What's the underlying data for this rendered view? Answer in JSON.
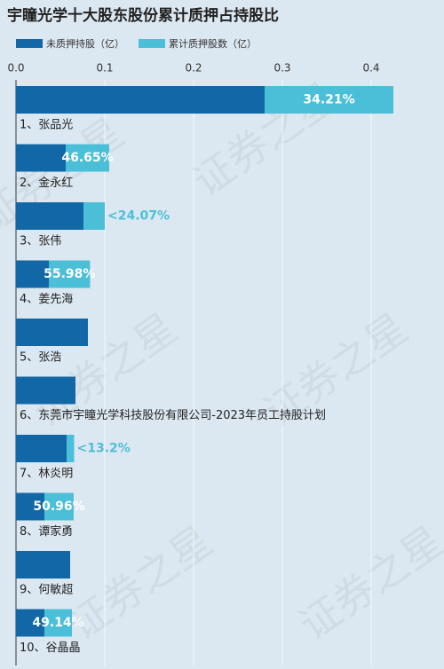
{
  "chart_data": {
    "type": "stacked-barh",
    "title": "宇瞳光学十大股东股份累计质押占持股比",
    "watermark": "证券之星",
    "categories": [
      "1、张品光",
      "2、金永红",
      "3、张伟",
      "4、姜先海",
      "5、张浩",
      "6、东莞市宇瞳光学科技股份有限公司-2023年员工持股计划",
      "7、林炎明",
      "8、谭家勇",
      "9、何敏超",
      "10、谷晶晶"
    ],
    "series": [
      {
        "name": "未质押持股（亿）",
        "color": "#1268a6",
        "values": [
          0.28,
          0.056,
          0.076,
          0.037,
          0.081,
          0.067,
          0.057,
          0.032,
          0.061,
          0.032
        ]
      },
      {
        "name": "累计质押股数（亿）",
        "color": "#4cbfd8",
        "values": [
          0.145,
          0.049,
          0.024,
          0.0465,
          0,
          0,
          0.0085,
          0.033,
          0,
          0.031
        ]
      }
    ],
    "pledge_ratio": {
      "values": [
        34.21,
        46.65,
        24.07,
        55.98,
        null,
        null,
        13.2,
        50.96,
        null,
        49.14
      ],
      "value_labels": [
        "34.21%",
        "46.65%",
        "<24.07%",
        "55.98%",
        null,
        null,
        "<13.2%",
        "50.96%",
        null,
        "49.14%"
      ]
    },
    "xlim": [
      0,
      0.48
    ],
    "xticks": [
      {
        "value": 0,
        "label": "0.0"
      },
      0.1,
      0.2,
      0.3,
      0.4
    ],
    "grid": true
  }
}
